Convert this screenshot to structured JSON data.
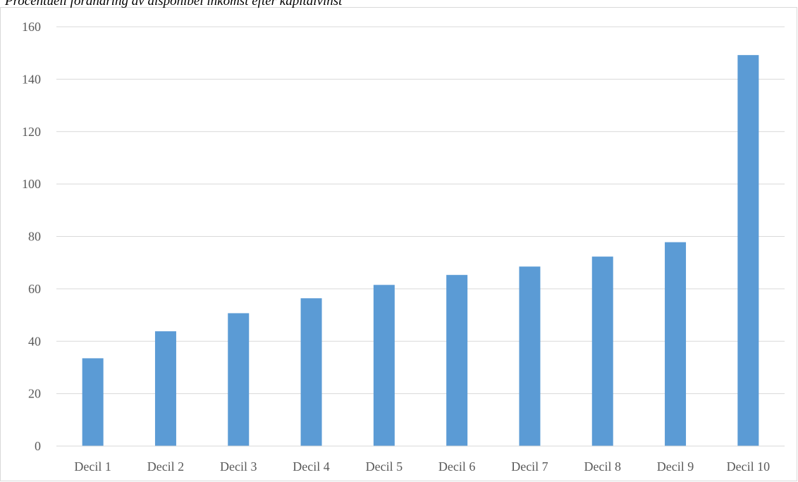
{
  "chart_data": {
    "type": "bar",
    "title": "Procentuell förändring av disponibel inkomst efter kapitalvinst",
    "categories": [
      "Decil 1",
      "Decil 2",
      "Decil 3",
      "Decil 4",
      "Decil 5",
      "Decil 6",
      "Decil 7",
      "Decil 8",
      "Decil 9",
      "Decil 10"
    ],
    "values": [
      33.5,
      43.8,
      50.7,
      56.4,
      61.5,
      65.3,
      68.5,
      72.3,
      77.8,
      149.2
    ],
    "ylim": [
      0,
      160
    ],
    "yticks": [
      "0",
      "20",
      "40",
      "60",
      "80",
      "100",
      "120",
      "140",
      "160"
    ],
    "xlabel": "",
    "ylabel": "",
    "grid": true,
    "legend": "none",
    "colors": {
      "bar": "#5b9bd5",
      "grid": "#d9d9d9",
      "axis": "#d9d9d9",
      "text": "#595959"
    }
  }
}
